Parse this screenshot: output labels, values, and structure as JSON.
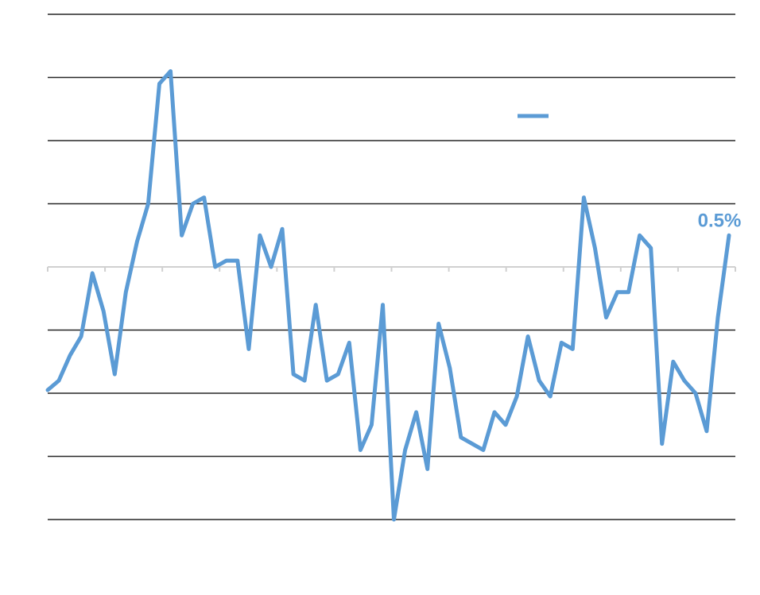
{
  "chart_data": {
    "type": "line",
    "title": "",
    "xlabel": "",
    "ylabel": "",
    "ylim": [
      -4,
      4
    ],
    "y_gridlines": [
      -4,
      -3,
      -2,
      -1,
      1,
      2,
      3,
      4
    ],
    "zero_axis": true,
    "tick_labels_visible": false,
    "x_tick_count": 12,
    "legend": {
      "position": "top-right",
      "entries": [
        {
          "name": "",
          "color": "#5b9bd5"
        }
      ]
    },
    "series": [
      {
        "name": "",
        "color": "#5b9bd5",
        "values": [
          -1.95,
          -1.8,
          -1.4,
          -1.1,
          -0.1,
          -0.7,
          -1.7,
          -0.4,
          0.4,
          1.0,
          2.9,
          3.1,
          0.5,
          1.0,
          1.1,
          0.0,
          0.1,
          0.1,
          -1.3,
          0.5,
          0.0,
          0.6,
          -1.7,
          -1.8,
          -0.6,
          -1.8,
          -1.7,
          -1.2,
          -2.9,
          -2.5,
          -0.6,
          -4.0,
          -2.9,
          -2.3,
          -3.2,
          -0.9,
          -1.6,
          -2.7,
          -2.8,
          -2.9,
          -2.3,
          -2.5,
          -2.05,
          -1.1,
          -1.8,
          -2.05,
          -1.2,
          -1.3,
          1.1,
          0.3,
          -0.8,
          -0.4,
          -0.4,
          0.5,
          0.3,
          -2.8,
          -1.5,
          -1.8,
          -2.0,
          -2.6,
          -0.8,
          0.5
        ]
      }
    ],
    "end_label": "0.5%"
  }
}
